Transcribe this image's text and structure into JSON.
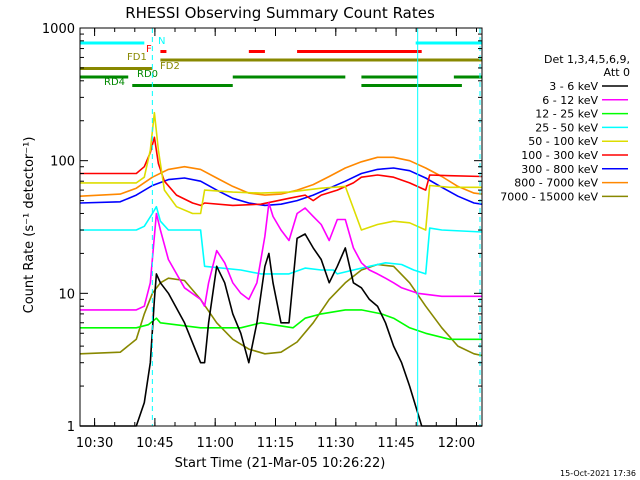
{
  "chart_data": {
    "type": "line",
    "title": "RHESSI Observing Summary Count Rates",
    "xlabel": "Start Time (21-Mar-05 10:26:22)",
    "ylabel": "Count Rate (s⁻¹ detector⁻¹)",
    "y_scale": "log",
    "ylim": [
      1,
      1000
    ],
    "xlim_minutes_after_1026": [
      0,
      100
    ],
    "x_ticks": [
      "10:30",
      "10:45",
      "11:00",
      "11:15",
      "11:30",
      "11:45",
      "12:00"
    ],
    "y_ticks": [
      "1",
      "10",
      "100",
      "1000"
    ],
    "legend_title": [
      "Det 1,3,4,5,6,9,",
      "Att 0"
    ],
    "timestamp": "15-Oct-2021 17:36",
    "flag_labels": {
      "F": "F",
      "N": "N",
      "FD1": "FD1",
      "FD2": "FD2",
      "RD0": "RD0",
      "RD4": "RD4"
    },
    "series": [
      {
        "name": "3 - 6 keV",
        "color": "#000000",
        "points": [
          [
            0,
            1
          ],
          [
            14,
            1
          ],
          [
            16,
            1.5
          ],
          [
            17.5,
            3
          ],
          [
            18.5,
            9
          ],
          [
            19,
            14
          ],
          [
            20,
            12
          ],
          [
            22,
            10
          ],
          [
            26,
            6
          ],
          [
            30,
            3
          ],
          [
            31,
            3
          ],
          [
            32,
            6
          ],
          [
            34,
            16
          ],
          [
            36,
            12
          ],
          [
            38,
            7
          ],
          [
            40,
            5
          ],
          [
            42,
            3
          ],
          [
            44,
            6
          ],
          [
            46,
            16
          ],
          [
            47,
            20
          ],
          [
            48,
            12
          ],
          [
            50,
            6
          ],
          [
            52,
            6
          ],
          [
            54,
            26
          ],
          [
            56,
            28
          ],
          [
            58,
            22
          ],
          [
            60,
            18
          ],
          [
            62,
            12
          ],
          [
            64,
            16
          ],
          [
            66,
            22
          ],
          [
            68,
            12
          ],
          [
            70,
            11
          ],
          [
            72,
            9
          ],
          [
            74,
            8
          ],
          [
            76,
            6
          ],
          [
            78,
            4
          ],
          [
            80,
            3
          ],
          [
            82,
            2
          ],
          [
            85,
            1
          ],
          [
            100,
            1
          ]
        ]
      },
      {
        "name": "6 - 12 keV",
        "color": "#ff00ff",
        "points": [
          [
            0,
            7.5
          ],
          [
            14,
            7.5
          ],
          [
            16,
            8
          ],
          [
            17.5,
            12
          ],
          [
            18.5,
            27
          ],
          [
            19,
            40
          ],
          [
            20,
            30
          ],
          [
            22,
            18
          ],
          [
            26,
            11
          ],
          [
            30,
            9
          ],
          [
            31,
            8
          ],
          [
            32,
            12
          ],
          [
            34,
            21
          ],
          [
            36,
            17
          ],
          [
            38,
            12
          ],
          [
            40,
            10
          ],
          [
            42,
            9
          ],
          [
            44,
            12
          ],
          [
            46,
            27
          ],
          [
            47,
            48
          ],
          [
            48,
            38
          ],
          [
            50,
            30
          ],
          [
            52,
            25
          ],
          [
            54,
            40
          ],
          [
            56,
            44
          ],
          [
            58,
            38
          ],
          [
            60,
            33
          ],
          [
            62,
            25
          ],
          [
            64,
            36
          ],
          [
            66,
            36
          ],
          [
            68,
            22
          ],
          [
            70,
            17
          ],
          [
            72,
            15
          ],
          [
            74,
            14
          ],
          [
            76,
            13
          ],
          [
            78,
            12
          ],
          [
            80,
            11
          ],
          [
            84,
            10
          ],
          [
            90,
            9.5
          ],
          [
            100,
            9.5
          ]
        ]
      },
      {
        "name": "12 - 25 keV",
        "color": "#00ff00",
        "points": [
          [
            0,
            5.5
          ],
          [
            14,
            5.5
          ],
          [
            17,
            5.8
          ],
          [
            19,
            6.5
          ],
          [
            20,
            6
          ],
          [
            30,
            5.5
          ],
          [
            40,
            5.5
          ],
          [
            45,
            6
          ],
          [
            53,
            5.5
          ],
          [
            56,
            6.5
          ],
          [
            60,
            7
          ],
          [
            66,
            7.5
          ],
          [
            70,
            7.5
          ],
          [
            75,
            7
          ],
          [
            78,
            6.5
          ],
          [
            82,
            5.5
          ],
          [
            86,
            5
          ],
          [
            92,
            4.5
          ],
          [
            100,
            4.5
          ]
        ]
      },
      {
        "name": "25 - 50 keV",
        "color": "#00ffff",
        "points": [
          [
            0,
            30
          ],
          [
            14,
            30
          ],
          [
            16,
            32
          ],
          [
            18,
            40
          ],
          [
            19,
            45
          ],
          [
            20,
            35
          ],
          [
            22,
            30
          ],
          [
            26,
            30
          ],
          [
            30,
            30
          ],
          [
            31,
            16
          ],
          [
            40,
            15
          ],
          [
            45,
            14
          ],
          [
            52,
            14
          ],
          [
            56,
            15.5
          ],
          [
            60,
            15
          ],
          [
            63,
            15
          ],
          [
            64,
            14
          ],
          [
            68,
            15
          ],
          [
            72,
            16
          ],
          [
            76,
            17
          ],
          [
            80,
            16.5
          ],
          [
            83,
            15
          ],
          [
            86,
            14
          ],
          [
            87,
            31
          ],
          [
            90,
            30
          ],
          [
            100,
            29
          ]
        ]
      },
      {
        "name": "50 - 100 keV",
        "color": "#dddd00",
        "points": [
          [
            0,
            68
          ],
          [
            14,
            68
          ],
          [
            16,
            75
          ],
          [
            17.5,
            120
          ],
          [
            18.5,
            230
          ],
          [
            19.5,
            120
          ],
          [
            21,
            60
          ],
          [
            24,
            45
          ],
          [
            28,
            40
          ],
          [
            30,
            40
          ],
          [
            31,
            60
          ],
          [
            38,
            58
          ],
          [
            45,
            57
          ],
          [
            52,
            58
          ],
          [
            60,
            62
          ],
          [
            66,
            64
          ],
          [
            70,
            30
          ],
          [
            74,
            33
          ],
          [
            78,
            35
          ],
          [
            82,
            34
          ],
          [
            86,
            30
          ],
          [
            87,
            65
          ],
          [
            92,
            63
          ],
          [
            100,
            63
          ]
        ]
      },
      {
        "name": "100 - 300 keV",
        "color": "#ff0000",
        "points": [
          [
            0,
            80
          ],
          [
            14,
            80
          ],
          [
            16,
            90
          ],
          [
            17.5,
            115
          ],
          [
            18.5,
            150
          ],
          [
            19.5,
            95
          ],
          [
            21,
            70
          ],
          [
            24,
            55
          ],
          [
            28,
            48
          ],
          [
            30,
            46
          ],
          [
            31,
            48
          ],
          [
            38,
            46
          ],
          [
            45,
            47
          ],
          [
            52,
            52
          ],
          [
            56,
            55
          ],
          [
            58,
            50
          ],
          [
            60,
            55
          ],
          [
            64,
            60
          ],
          [
            68,
            68
          ],
          [
            70,
            75
          ],
          [
            74,
            78
          ],
          [
            78,
            75
          ],
          [
            82,
            68
          ],
          [
            86,
            60
          ],
          [
            87,
            78
          ],
          [
            92,
            77
          ],
          [
            100,
            76
          ]
        ]
      },
      {
        "name": "300 - 800 keV",
        "color": "#0000ff",
        "points": [
          [
            0,
            48
          ],
          [
            10,
            49
          ],
          [
            14,
            55
          ],
          [
            18,
            65
          ],
          [
            22,
            72
          ],
          [
            26,
            74
          ],
          [
            30,
            70
          ],
          [
            34,
            60
          ],
          [
            38,
            52
          ],
          [
            42,
            48
          ],
          [
            46,
            46
          ],
          [
            50,
            47
          ],
          [
            54,
            50
          ],
          [
            58,
            55
          ],
          [
            62,
            62
          ],
          [
            66,
            70
          ],
          [
            70,
            80
          ],
          [
            74,
            86
          ],
          [
            78,
            88
          ],
          [
            82,
            84
          ],
          [
            86,
            74
          ],
          [
            90,
            63
          ],
          [
            94,
            54
          ],
          [
            98,
            48
          ],
          [
            100,
            47
          ]
        ]
      },
      {
        "name": "800 - 7000 keV",
        "color": "#ff8800",
        "points": [
          [
            0,
            54
          ],
          [
            10,
            56
          ],
          [
            14,
            62
          ],
          [
            18,
            75
          ],
          [
            22,
            86
          ],
          [
            26,
            90
          ],
          [
            30,
            86
          ],
          [
            34,
            74
          ],
          [
            38,
            64
          ],
          [
            42,
            57
          ],
          [
            46,
            55
          ],
          [
            50,
            56
          ],
          [
            54,
            60
          ],
          [
            58,
            66
          ],
          [
            62,
            76
          ],
          [
            66,
            88
          ],
          [
            70,
            98
          ],
          [
            74,
            106
          ],
          [
            78,
            106
          ],
          [
            82,
            100
          ],
          [
            86,
            88
          ],
          [
            90,
            76
          ],
          [
            94,
            64
          ],
          [
            98,
            57
          ],
          [
            100,
            56
          ]
        ]
      },
      {
        "name": "7000 - 15000 keV",
        "color": "#888800",
        "points": [
          [
            0,
            3.5
          ],
          [
            10,
            3.6
          ],
          [
            14,
            4.5
          ],
          [
            16,
            7
          ],
          [
            18,
            10
          ],
          [
            20,
            12
          ],
          [
            22,
            13
          ],
          [
            26,
            12.5
          ],
          [
            30,
            9
          ],
          [
            34,
            6
          ],
          [
            38,
            4.5
          ],
          [
            42,
            3.8
          ],
          [
            46,
            3.5
          ],
          [
            50,
            3.6
          ],
          [
            54,
            4.3
          ],
          [
            58,
            6
          ],
          [
            62,
            9
          ],
          [
            66,
            12
          ],
          [
            70,
            15
          ],
          [
            74,
            16.5
          ],
          [
            78,
            16
          ],
          [
            82,
            12
          ],
          [
            86,
            8
          ],
          [
            90,
            5.5
          ],
          [
            94,
            4
          ],
          [
            98,
            3.5
          ],
          [
            100,
            3.4
          ]
        ]
      }
    ],
    "flag_bars": [
      {
        "label": "F",
        "color": "#ff0000",
        "level": 8,
        "segments": [
          [
            20,
            21.5
          ],
          [
            42,
            46
          ],
          [
            54,
            85
          ]
        ]
      },
      {
        "label": "N",
        "color": "#00ffff",
        "level": 9,
        "segments": [
          [
            0,
            16
          ],
          [
            83.5,
            100
          ]
        ]
      },
      {
        "label": "FD1",
        "color": "#888800",
        "level": 6,
        "segments": [
          [
            0,
            18
          ]
        ]
      },
      {
        "label": "FD2",
        "color": "#888800",
        "level": 7,
        "segments": [
          [
            20,
            100
          ]
        ]
      },
      {
        "label": "RD0",
        "color": "#008800",
        "level": 5,
        "segments": [
          [
            0,
            12
          ],
          [
            38,
            66
          ],
          [
            70,
            84
          ],
          [
            93,
            100
          ]
        ]
      },
      {
        "label": "RD4",
        "color": "#008800",
        "level": 4,
        "segments": [
          [
            13,
            38
          ],
          [
            70,
            95
          ]
        ]
      }
    ],
    "vertical_markers": [
      {
        "minute": 18,
        "color": "#00ffff",
        "style": "dashed"
      },
      {
        "minute": 84,
        "color": "#00ffff",
        "style": "solid"
      },
      {
        "minute": 99.5,
        "color": "#00ffff",
        "style": "dashed"
      }
    ]
  }
}
